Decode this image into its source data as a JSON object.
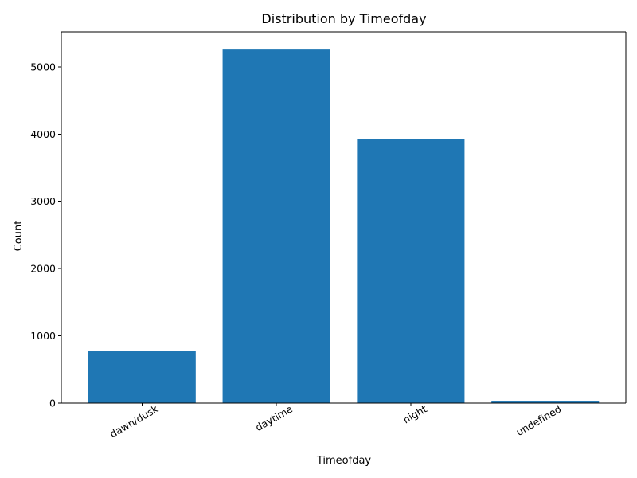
{
  "chart_data": {
    "type": "bar",
    "title": "Distribution by Timeofday",
    "xlabel": "Timeofday",
    "ylabel": "Count",
    "categories": [
      "dawn/dusk",
      "daytime",
      "night",
      "undefined"
    ],
    "values": [
      778,
      5258,
      3929,
      35
    ],
    "ylim": [
      0,
      5520
    ],
    "yticks": [
      0,
      1000,
      2000,
      3000,
      4000,
      5000
    ],
    "ytick_labels": [
      "0",
      "1000",
      "2000",
      "3000",
      "4000",
      "5000"
    ],
    "xtick_rotation": 30,
    "bar_color": "#1f77b4",
    "grid": false,
    "legend": "none"
  }
}
